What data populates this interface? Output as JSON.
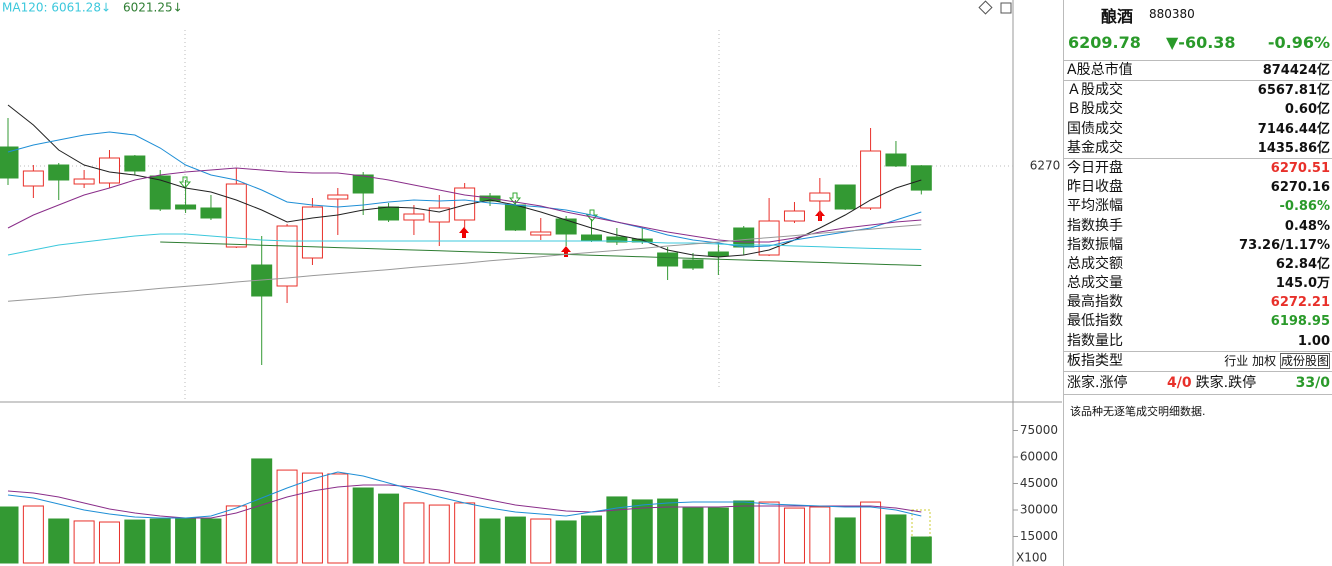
{
  "chart_data": [
    {
      "type": "candlestick",
      "categories": [
        null,
        null,
        null,
        null,
        null,
        null,
        null,
        null,
        null,
        null,
        null,
        null,
        null,
        null,
        null,
        null,
        null,
        null,
        null,
        null,
        null,
        null,
        null,
        null,
        null,
        null,
        null,
        null,
        null,
        null,
        null,
        null,
        null,
        null,
        null,
        null,
        null
      ],
      "open": [
        6317.5,
        6220,
        6272.5,
        6225,
        6227.5,
        6295,
        6245,
        6172.5,
        6165,
        6067.5,
        6022.5,
        5970,
        6040,
        6187.5,
        6247.5,
        6167.5,
        6135,
        6130,
        6135,
        6195,
        6172.5,
        6097.5,
        6137.5,
        6097.5,
        6092.5,
        6087.5,
        6052.5,
        6035,
        6055,
        6115,
        6047.5,
        6132.5,
        6182.5,
        6222.5,
        6165,
        6300,
        6270.51
      ],
      "high": [
        6390,
        6272.5,
        6277.5,
        6260,
        6310,
        6297.5,
        6260,
        6235,
        6197.5,
        6265,
        6095,
        6125,
        6190,
        6215,
        6255,
        6177.5,
        6172.5,
        6197.5,
        6227.5,
        6202.5,
        6185,
        6140,
        6145,
        6137.5,
        6115,
        6115,
        6067.5,
        6052.5,
        6077.5,
        6120,
        6190,
        6180,
        6240,
        6222.5,
        6365,
        6332.5,
        6272.21
      ],
      "low": [
        6222.5,
        6190,
        6185,
        6215,
        6215,
        6247.5,
        6157.5,
        6152.5,
        6135,
        6065,
        5772.5,
        5927.5,
        6022.5,
        6097.5,
        6147.5,
        6130,
        6097.5,
        6070,
        6115,
        6170,
        6107.5,
        6085,
        6070,
        6080,
        6072.5,
        6075,
        5985,
        6010,
        5997.5,
        6047.5,
        6045,
        6127.5,
        6132.5,
        6160,
        6160,
        6267.5,
        6198.95
      ],
      "close": [
        6240,
        6257.5,
        6235,
        6237.5,
        6290,
        6257.5,
        6162.5,
        6162.5,
        6140,
        6225,
        5945,
        6120,
        6167.5,
        6197.5,
        6202.5,
        6135,
        6150,
        6165,
        6215,
        6182.5,
        6110,
        6105,
        6100,
        6082.5,
        6080,
        6080,
        6020,
        6015,
        6045,
        6067.5,
        6132.5,
        6157.5,
        6202.5,
        6162.5,
        6307.5,
        6270.16,
        6209.78
      ],
      "up_color": "#e8302a",
      "down_color": "#339933",
      "series": [
        {
          "color": "#222222",
          "values": [
            6422.5,
            6372.5,
            6310,
            6272.5,
            6255,
            6247.5,
            6235,
            6215,
            6205,
            6185,
            6160,
            6130,
            6140,
            6147.5,
            6160,
            6167.5,
            6165,
            6155,
            6172.5,
            6185,
            6172.5,
            6155,
            6135,
            6115,
            6097.5,
            6085,
            6060,
            6047.5,
            6042.5,
            6047.5,
            6060,
            6085,
            6115,
            6147.5,
            6185,
            6215,
            6235
          ]
        },
        {
          "color": "#1f8fd6",
          "values": [
            6305,
            6322.5,
            6335,
            6347.5,
            6355,
            6347.5,
            6315,
            6272.5,
            6247.5,
            6235,
            6210,
            6180,
            6172.5,
            6167.5,
            6172.5,
            6180,
            6185,
            6182.5,
            6185,
            6177.5,
            6172.5,
            6167.5,
            6160,
            6147.5,
            6130,
            6115,
            6097.5,
            6085,
            6077.5,
            6067.5,
            6070,
            6085,
            6095,
            6105,
            6115,
            6135,
            6155
          ]
        },
        {
          "color": "#8a2e8a",
          "values": [
            6115,
            6147.5,
            6172.5,
            6197.5,
            6215,
            6235,
            6247.5,
            6255,
            6260,
            6265,
            6260,
            6255,
            6252.5,
            6252.5,
            6245,
            6235,
            6222.5,
            6210,
            6197.5,
            6190,
            6180,
            6170,
            6155,
            6142.5,
            6130,
            6117.5,
            6105,
            6095,
            6085,
            6080,
            6080,
            6090,
            6105,
            6115,
            6122.5,
            6130,
            6135
          ]
        },
        {
          "color": "#3cc8dc",
          "label": "MA120: 6061.28↓",
          "values": [
            6047.5,
            6060,
            6072.5,
            6080,
            6087.5,
            6095,
            6100,
            6100,
            6095,
            6090,
            6085,
            6082.5,
            6082.5,
            6082.5,
            6082.5,
            6082.5,
            6082.5,
            6082.5,
            6082.5,
            6082.5,
            6082.5,
            6082.5,
            6082.5,
            6082.5,
            6082.5,
            6080,
            6077.5,
            6077.5,
            6075,
            6072.5,
            6072.5,
            6070,
            6068,
            6066,
            6064,
            6062.5,
            6061.28
          ]
        },
        {
          "color": "#2e7d32",
          "label": "6021.25↓",
          "values": [
            null,
            null,
            null,
            null,
            null,
            null,
            6080,
            6078,
            6076,
            6074,
            6072,
            6070,
            6068,
            6066,
            6064,
            6062,
            6060,
            6058,
            6056,
            6054,
            6052,
            6050,
            6049,
            6047,
            6045,
            6043,
            6041,
            6039,
            6037,
            6035,
            6033,
            6031,
            6029,
            6027,
            6025,
            6023,
            6021.25
          ]
        },
        {
          "color": "#999999",
          "values": [
            5932,
            5937,
            5942,
            5948,
            5953,
            5958,
            5964,
            5969,
            5974,
            5980,
            5985,
            5990,
            5996,
            6001,
            6006,
            6011,
            6017,
            6022,
            6027,
            6033,
            6038,
            6043,
            6049,
            6054,
            6059,
            6064,
            6070,
            6075,
            6080,
            6086,
            6091,
            6096,
            6102,
            6107,
            6112,
            6118,
            6123
          ]
        }
      ],
      "ylim": [
        5685,
        6685
      ],
      "yticks": [
        6270
      ],
      "grid": true
    },
    {
      "type": "bar",
      "y_unit_label": "X100",
      "values": [
        31700,
        32260,
        24900,
        23800,
        23200,
        24300,
        24900,
        24900,
        24900,
        32300,
        58900,
        52600,
        50900,
        50400,
        42450,
        39000,
        34000,
        32800,
        34000,
        24900,
        26000,
        24900,
        23800,
        26600,
        37400,
        35700,
        36200,
        31100,
        31100,
        35100,
        34500,
        31100,
        31700,
        25500,
        34500,
        27200,
        14700
      ],
      "colors": [
        "#339933",
        "#e8302a",
        "#339933",
        "#e8302a",
        "#e8302a",
        "#339933",
        "#339933",
        "#339933",
        "#339933",
        "#e8302a",
        "#339933",
        "#e8302a",
        "#e8302a",
        "#e8302a",
        "#339933",
        "#339933",
        "#e8302a",
        "#e8302a",
        "#e8302a",
        "#339933",
        "#339933",
        "#e8302a",
        "#339933",
        "#339933",
        "#339933",
        "#339933",
        "#339933",
        "#339933",
        "#339933",
        "#339933",
        "#e8302a",
        "#e8302a",
        "#e8302a",
        "#339933",
        "#e8302a",
        "#339933",
        "#339933"
      ],
      "series": [
        {
          "color": "#8a2e8a",
          "values": [
            40750,
            39620,
            37360,
            33960,
            30560,
            28300,
            26600,
            25470,
            25470,
            28300,
            32830,
            37360,
            40750,
            43020,
            44150,
            44150,
            43020,
            41320,
            38490,
            35660,
            32830,
            31130,
            29430,
            28870,
            30000,
            31130,
            31700,
            31700,
            31700,
            32260,
            32260,
            32260,
            32260,
            32260,
            32260,
            31130,
            28870
          ]
        },
        {
          "color": "#1f8fd6",
          "values": [
            38490,
            36790,
            33400,
            30000,
            27740,
            26040,
            25470,
            25470,
            26600,
            31130,
            36790,
            42450,
            47550,
            51510,
            49250,
            45280,
            41320,
            37360,
            33960,
            31130,
            28870,
            27740,
            26600,
            28870,
            31130,
            32830,
            33960,
            34530,
            34530,
            34530,
            33400,
            32830,
            32260,
            31700,
            31700,
            30000,
            26600
          ]
        }
      ],
      "ylim": [
        0,
        90000
      ],
      "yticks": [
        15000,
        30000,
        45000,
        60000,
        75000
      ]
    }
  ],
  "panel": {
    "name": "酿酒",
    "code": "880380",
    "price": "6209.78",
    "change": "▼-60.38",
    "change_pct": "-0.96%",
    "rows": [
      {
        "label": "A股总市值",
        "value": "874424亿"
      },
      {
        "label": "Ａ股成交",
        "value": "6567.81亿"
      },
      {
        "label": "Ｂ股成交",
        "value": "0.60亿"
      },
      {
        "label": "国债成交",
        "value": "7146.44亿"
      },
      {
        "label": "基金成交",
        "value": "1435.86亿"
      },
      {
        "label": "今日开盘",
        "value": "6270.51",
        "color": "#e8302a"
      },
      {
        "label": "昨日收盘",
        "value": "6270.16"
      },
      {
        "label": "平均涨幅",
        "value": "-0.86%",
        "color": "#2a9a2a"
      },
      {
        "label": "指数换手",
        "value": "0.48%"
      },
      {
        "label": "指数振幅",
        "value": "73.26/1.17%"
      },
      {
        "label": "总成交额",
        "value": "62.84亿"
      },
      {
        "label": "总成交量",
        "value": "145.0万"
      },
      {
        "label": "最高指数",
        "value": "6272.21",
        "color": "#e8302a"
      },
      {
        "label": "最低指数",
        "value": "6198.95",
        "color": "#2a9a2a"
      },
      {
        "label": "指数量比",
        "value": "1.00"
      }
    ],
    "type_row": {
      "label": "板指类型",
      "values": [
        "行业",
        "加权",
        "成份股图"
      ]
    },
    "breadth": {
      "up_label": "涨家.涨停",
      "up": "4/0",
      "down_label": "跌家.跌停",
      "down": "33/0"
    },
    "note": "该品种无逐笔成交明细数据."
  }
}
